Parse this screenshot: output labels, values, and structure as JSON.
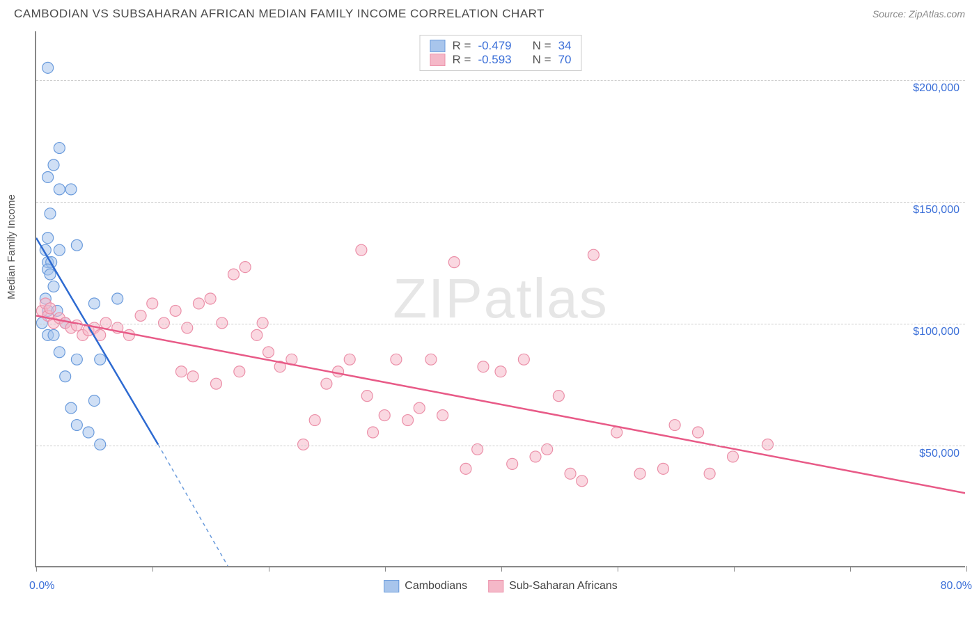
{
  "title": "CAMBODIAN VS SUBSAHARAN AFRICAN MEDIAN FAMILY INCOME CORRELATION CHART",
  "source": "Source: ZipAtlas.com",
  "watermark": {
    "zip": "ZIP",
    "atlas": "atlas"
  },
  "y_axis_label": "Median Family Income",
  "chart": {
    "type": "scatter",
    "background_color": "#ffffff",
    "grid_color": "#cccccc",
    "axis_color": "#888888",
    "xlim": [
      0,
      80
    ],
    "ylim": [
      0,
      220000
    ],
    "x_ticks": [
      0,
      10,
      20,
      30,
      40,
      50,
      60,
      70,
      80
    ],
    "x_tick_labels_shown": {
      "0": "0.0%",
      "80": "80.0%"
    },
    "y_grid": [
      {
        "value": 50000,
        "label": "$50,000"
      },
      {
        "value": 100000,
        "label": "$100,000"
      },
      {
        "value": 150000,
        "label": "$150,000"
      },
      {
        "value": 200000,
        "label": "$200,000"
      }
    ],
    "series": [
      {
        "name": "Cambodians",
        "fill_color": "#a8c5ec",
        "fill_opacity": 0.55,
        "stroke_color": "#6a9bdc",
        "line_color": "#2d6ad1",
        "line_width": 2.5,
        "marker_radius": 8,
        "correlation_R": "-0.479",
        "correlation_N": "34",
        "regression": {
          "x1": 0,
          "y1": 135000,
          "x2": 10.5,
          "y2": 50000
        },
        "regression_ext": {
          "x1": 10.5,
          "y1": 50000,
          "x2": 16.5,
          "y2": 0
        },
        "points": [
          [
            1.0,
            205000
          ],
          [
            2.0,
            172000
          ],
          [
            1.5,
            165000
          ],
          [
            1.0,
            160000
          ],
          [
            2.0,
            155000
          ],
          [
            3.0,
            155000
          ],
          [
            1.2,
            145000
          ],
          [
            1.0,
            135000
          ],
          [
            0.8,
            130000
          ],
          [
            1.0,
            125000
          ],
          [
            1.3,
            125000
          ],
          [
            2.0,
            130000
          ],
          [
            3.5,
            132000
          ],
          [
            1.0,
            122000
          ],
          [
            1.2,
            120000
          ],
          [
            1.5,
            115000
          ],
          [
            0.8,
            110000
          ],
          [
            1.0,
            105000
          ],
          [
            1.8,
            105000
          ],
          [
            2.5,
            100000
          ],
          [
            5.0,
            108000
          ],
          [
            7.0,
            110000
          ],
          [
            1.0,
            95000
          ],
          [
            1.5,
            95000
          ],
          [
            2.0,
            88000
          ],
          [
            3.5,
            85000
          ],
          [
            5.5,
            85000
          ],
          [
            2.5,
            78000
          ],
          [
            3.0,
            65000
          ],
          [
            5.0,
            68000
          ],
          [
            3.5,
            58000
          ],
          [
            4.5,
            55000
          ],
          [
            5.5,
            50000
          ],
          [
            0.5,
            100000
          ]
        ]
      },
      {
        "name": "Sub-Saharan Africans",
        "fill_color": "#f5b8c8",
        "fill_opacity": 0.55,
        "stroke_color": "#eb8fa8",
        "line_color": "#e85a87",
        "line_width": 2.5,
        "marker_radius": 8,
        "correlation_R": "-0.593",
        "correlation_N": "70",
        "regression": {
          "x1": 0,
          "y1": 103000,
          "x2": 80,
          "y2": 30000
        },
        "points": [
          [
            0.5,
            105000
          ],
          [
            1.0,
            103000
          ],
          [
            1.5,
            100000
          ],
          [
            2.0,
            102000
          ],
          [
            2.5,
            100000
          ],
          [
            3.0,
            98000
          ],
          [
            3.5,
            99000
          ],
          [
            4.0,
            95000
          ],
          [
            4.5,
            97000
          ],
          [
            5.0,
            98000
          ],
          [
            5.5,
            95000
          ],
          [
            6.0,
            100000
          ],
          [
            7.0,
            98000
          ],
          [
            8.0,
            95000
          ],
          [
            9.0,
            103000
          ],
          [
            10.0,
            108000
          ],
          [
            11.0,
            100000
          ],
          [
            12.0,
            105000
          ],
          [
            13.0,
            98000
          ],
          [
            14.0,
            108000
          ],
          [
            12.5,
            80000
          ],
          [
            13.5,
            78000
          ],
          [
            15.0,
            110000
          ],
          [
            16.0,
            100000
          ],
          [
            17.0,
            120000
          ],
          [
            18.0,
            123000
          ],
          [
            19.0,
            95000
          ],
          [
            19.5,
            100000
          ],
          [
            15.5,
            75000
          ],
          [
            17.5,
            80000
          ],
          [
            20.0,
            88000
          ],
          [
            21.0,
            82000
          ],
          [
            22.0,
            85000
          ],
          [
            23.0,
            50000
          ],
          [
            24.0,
            60000
          ],
          [
            25.0,
            75000
          ],
          [
            26.0,
            80000
          ],
          [
            27.0,
            85000
          ],
          [
            28.0,
            130000
          ],
          [
            28.5,
            70000
          ],
          [
            29.0,
            55000
          ],
          [
            30.0,
            62000
          ],
          [
            31.0,
            85000
          ],
          [
            32.0,
            60000
          ],
          [
            33.0,
            65000
          ],
          [
            34.0,
            85000
          ],
          [
            35.0,
            62000
          ],
          [
            36.0,
            125000
          ],
          [
            37.0,
            40000
          ],
          [
            38.0,
            48000
          ],
          [
            38.5,
            82000
          ],
          [
            40.0,
            80000
          ],
          [
            41.0,
            42000
          ],
          [
            42.0,
            85000
          ],
          [
            43.0,
            45000
          ],
          [
            44.0,
            48000
          ],
          [
            45.0,
            70000
          ],
          [
            46.0,
            38000
          ],
          [
            47.0,
            35000
          ],
          [
            48.0,
            128000
          ],
          [
            50.0,
            55000
          ],
          [
            52.0,
            38000
          ],
          [
            54.0,
            40000
          ],
          [
            55.0,
            58000
          ],
          [
            57.0,
            55000
          ],
          [
            58.0,
            38000
          ],
          [
            60.0,
            45000
          ],
          [
            63.0,
            50000
          ],
          [
            0.8,
            108000
          ],
          [
            1.2,
            106000
          ]
        ]
      }
    ]
  },
  "legend_bottom": [
    {
      "label": "Cambodians",
      "fill": "#a8c5ec",
      "stroke": "#6a9bdc"
    },
    {
      "label": "Sub-Saharan Africans",
      "fill": "#f5b8c8",
      "stroke": "#eb8fa8"
    }
  ],
  "legend_top_labels": {
    "r": "R =",
    "n": "N ="
  }
}
